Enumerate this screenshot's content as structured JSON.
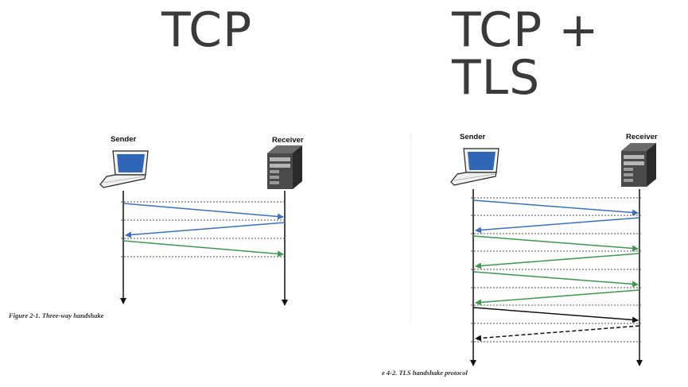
{
  "titles": {
    "left": "TCP",
    "right": "TCP + TLS"
  },
  "left_diagram": {
    "sender_label": "Sender",
    "receiver_label": "Receiver",
    "caption": "Figure 2-1. Three-way handshake",
    "arrow_colors": [
      "#3b6fc4",
      "#3b6fc4",
      "#3b9a4b"
    ]
  },
  "right_diagram": {
    "sender_label": "Sender",
    "receiver_label": "Receiver",
    "caption": "e 4-2. TLS handshake protocol",
    "arrow_colors": [
      "#3b6fc4",
      "#3b6fc4",
      "#3b9a4b",
      "#3b9a4b",
      "#3b9a4b",
      "#3b9a4b",
      "#111111",
      "#111111"
    ]
  },
  "colors": {
    "blue": "#3b6fc4",
    "green": "#3b9a4b",
    "black": "#111111"
  }
}
